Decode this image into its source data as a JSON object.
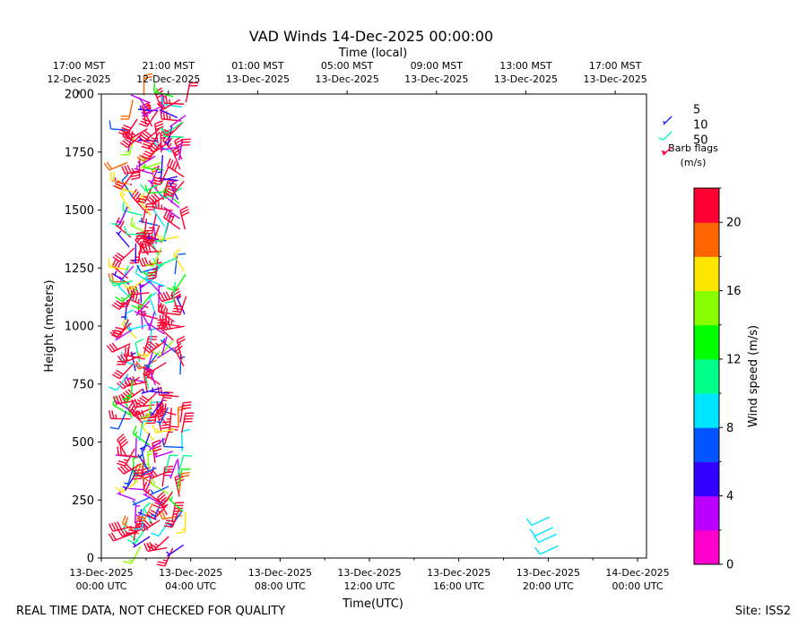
{
  "chart_data": {
    "type": "wind_barbs",
    "title": "VAD Winds 14-Dec-2025 00:00:00",
    "top_axis_label": "Time (local)",
    "top_ticks": [
      {
        "hour": -1,
        "line1": "17:00 MST",
        "line2": "12-Dec-2025"
      },
      {
        "hour": 3,
        "line1": "21:00 MST",
        "line2": "12-Dec-2025"
      },
      {
        "hour": 7,
        "line1": "01:00 MST",
        "line2": "13-Dec-2025"
      },
      {
        "hour": 11,
        "line1": "05:00 MST",
        "line2": "13-Dec-2025"
      },
      {
        "hour": 15,
        "line1": "09:00 MST",
        "line2": "13-Dec-2025"
      },
      {
        "hour": 19,
        "line1": "13:00 MST",
        "line2": "13-Dec-2025"
      },
      {
        "hour": 23,
        "line1": "17:00 MST",
        "line2": "13-Dec-2025"
      }
    ],
    "xlabel": "Time(UTC)",
    "bottom_ticks": [
      {
        "hour": 0,
        "line1": "13-Dec-2025",
        "line2": "00:00 UTC"
      },
      {
        "hour": 4,
        "line1": "13-Dec-2025",
        "line2": "04:00 UTC"
      },
      {
        "hour": 8,
        "line1": "13-Dec-2025",
        "line2": "08:00 UTC"
      },
      {
        "hour": 12,
        "line1": "13-Dec-2025",
        "line2": "12:00 UTC"
      },
      {
        "hour": 16,
        "line1": "13-Dec-2025",
        "line2": "16:00 UTC"
      },
      {
        "hour": 20,
        "line1": "13-Dec-2025",
        "line2": "20:00 UTC"
      },
      {
        "hour": 24,
        "line1": "14-Dec-2025",
        "line2": "00:00 UTC"
      }
    ],
    "xlim_hours": [
      0,
      24.4
    ],
    "ylabel": "Height (meters)",
    "ylim": [
      0,
      2000
    ],
    "yticks": [
      0,
      250,
      500,
      750,
      1000,
      1250,
      1500,
      1750,
      2000
    ],
    "barb_flags": {
      "title_line1": "Barb flags",
      "title_line2": "(m/s)",
      "values": [
        5,
        10,
        50
      ],
      "colors": [
        "#1a1aff",
        "#00ffcc",
        "#ff0040"
      ]
    },
    "colorbar": {
      "label": "Wind speed (m/s)",
      "bounds": [
        0,
        22
      ],
      "tick_values": [
        0,
        4,
        8,
        12,
        16,
        20
      ],
      "tick_labels": [
        "0",
        "4",
        "8",
        "12",
        "16",
        "20"
      ],
      "colors": [
        "#ff00cc",
        "#bb00ff",
        "#3300ff",
        "#0055ff",
        "#00e5ff",
        "#00ff88",
        "#00ff00",
        "#88ff00",
        "#ffe600",
        "#ff6600",
        "#ff0033"
      ]
    },
    "clusters": [
      {
        "hour_start": 1.1,
        "hour_end": 3.8,
        "height_start": 40,
        "height_end": 2000,
        "height_step": 16,
        "speed_range": [
          2,
          45
        ]
      },
      {
        "hour_start": 19.8,
        "hour_end": 20.6,
        "height_start": 60,
        "height_end": 190,
        "height_step": 40,
        "speed_range": [
          9,
          9
        ]
      }
    ],
    "footer_left": "REAL TIME DATA, NOT CHECKED FOR QUALITY",
    "footer_right": "Site: ISS2"
  }
}
